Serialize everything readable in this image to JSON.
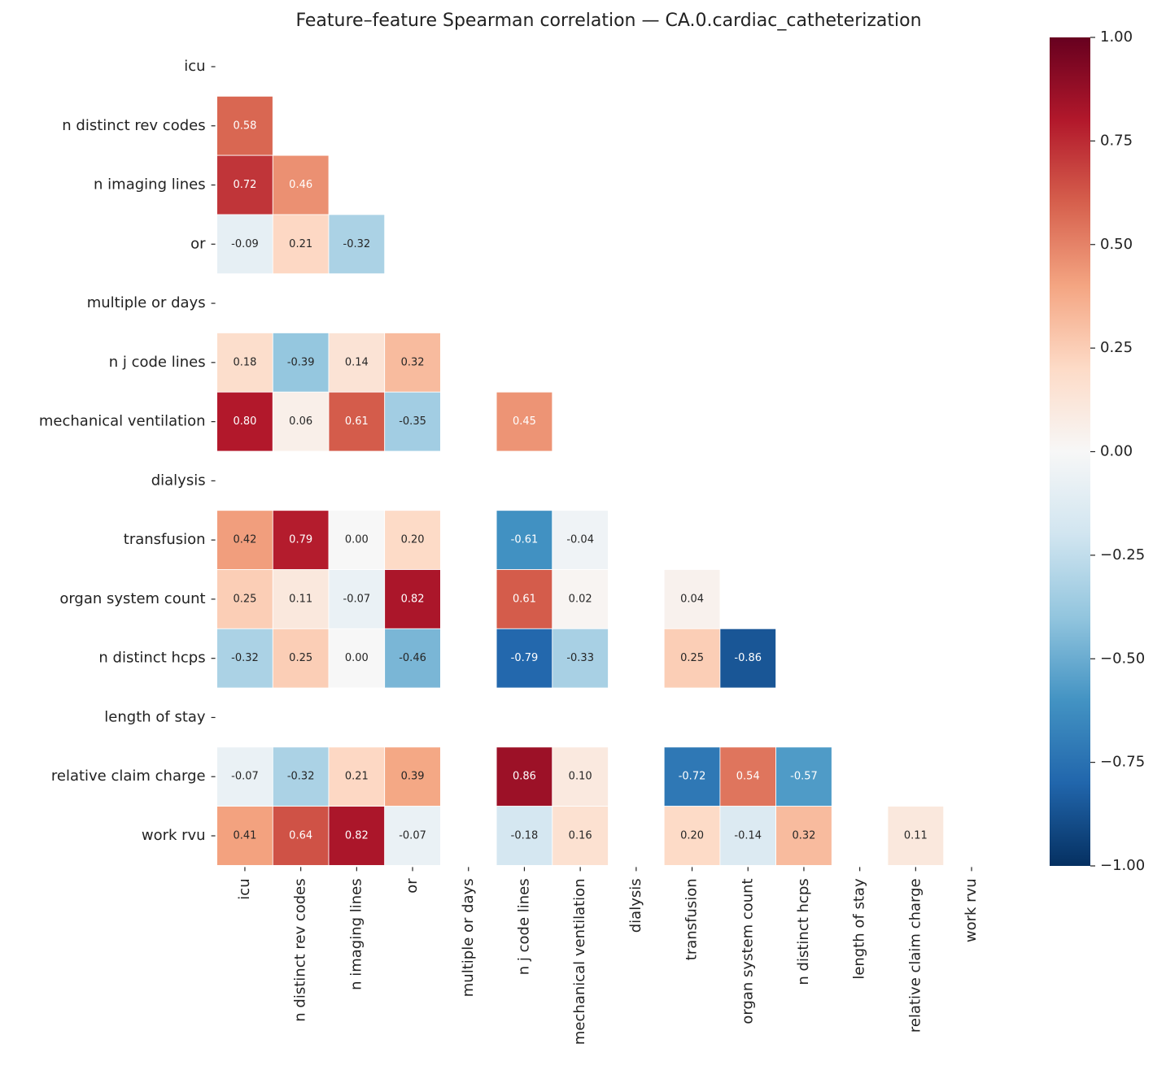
{
  "chart_data": {
    "type": "heatmap",
    "title": "Feature–feature Spearman correlation — CA.0.cardiac_catheterization",
    "categories": [
      "icu",
      "n distinct rev codes",
      "n imaging lines",
      "or",
      "multiple or days",
      "n j code lines",
      "mechanical ventilation",
      "dialysis",
      "transfusion",
      "organ system count",
      "n distinct hcps",
      "length of stay",
      "relative claim charge",
      "work rvu"
    ],
    "values": [
      [
        null,
        null,
        null,
        null,
        null,
        null,
        null,
        null,
        null,
        null,
        null,
        null,
        null,
        null
      ],
      [
        0.58,
        null,
        null,
        null,
        null,
        null,
        null,
        null,
        null,
        null,
        null,
        null,
        null,
        null
      ],
      [
        0.72,
        0.46,
        null,
        null,
        null,
        null,
        null,
        null,
        null,
        null,
        null,
        null,
        null,
        null
      ],
      [
        -0.09,
        0.21,
        -0.32,
        null,
        null,
        null,
        null,
        null,
        null,
        null,
        null,
        null,
        null,
        null
      ],
      [
        null,
        null,
        null,
        null,
        null,
        null,
        null,
        null,
        null,
        null,
        null,
        null,
        null,
        null
      ],
      [
        0.18,
        -0.39,
        0.14,
        0.32,
        null,
        null,
        null,
        null,
        null,
        null,
        null,
        null,
        null,
        null
      ],
      [
        0.8,
        0.06,
        0.61,
        -0.35,
        null,
        0.45,
        null,
        null,
        null,
        null,
        null,
        null,
        null,
        null
      ],
      [
        null,
        null,
        null,
        null,
        null,
        null,
        null,
        null,
        null,
        null,
        null,
        null,
        null,
        null
      ],
      [
        0.42,
        0.79,
        0,
        0.2,
        null,
        -0.61,
        -0.04,
        null,
        null,
        null,
        null,
        null,
        null,
        null
      ],
      [
        0.25,
        0.11,
        -0.07,
        0.82,
        null,
        0.61,
        0.02,
        null,
        0.04,
        null,
        null,
        null,
        null,
        null
      ],
      [
        -0.32,
        0.25,
        0,
        -0.46,
        null,
        -0.79,
        -0.33,
        null,
        0.25,
        -0.86,
        null,
        null,
        null,
        null
      ],
      [
        null,
        null,
        null,
        null,
        null,
        null,
        null,
        null,
        null,
        null,
        null,
        null,
        null,
        null
      ],
      [
        -0.07,
        -0.32,
        0.21,
        0.39,
        null,
        0.86,
        0.1,
        null,
        -0.72,
        0.54,
        -0.57,
        null,
        null,
        null
      ],
      [
        0.41,
        0.64,
        0.82,
        -0.07,
        null,
        -0.18,
        0.16,
        null,
        0.2,
        -0.14,
        0.32,
        null,
        0.11,
        null
      ]
    ],
    "value_labels": [
      [
        null,
        null,
        null,
        null,
        null,
        null,
        null,
        null,
        null,
        null,
        null,
        null,
        null,
        null
      ],
      [
        "0.58",
        null,
        null,
        null,
        null,
        null,
        null,
        null,
        null,
        null,
        null,
        null,
        null,
        null
      ],
      [
        "0.72",
        "0.46",
        null,
        null,
        null,
        null,
        null,
        null,
        null,
        null,
        null,
        null,
        null,
        null
      ],
      [
        "-0.09",
        "0.21",
        "-0.32",
        null,
        null,
        null,
        null,
        null,
        null,
        null,
        null,
        null,
        null,
        null
      ],
      [
        null,
        null,
        null,
        null,
        null,
        null,
        null,
        null,
        null,
        null,
        null,
        null,
        null,
        null
      ],
      [
        "0.18",
        "-0.39",
        "0.14",
        "0.32",
        null,
        null,
        null,
        null,
        null,
        null,
        null,
        null,
        null,
        null
      ],
      [
        "0.80",
        "0.06",
        "0.61",
        "-0.35",
        null,
        "0.45",
        null,
        null,
        null,
        null,
        null,
        null,
        null,
        null
      ],
      [
        null,
        null,
        null,
        null,
        null,
        null,
        null,
        null,
        null,
        null,
        null,
        null,
        null,
        null
      ],
      [
        "0.42",
        "0.79",
        "0.00",
        "0.20",
        null,
        "-0.61",
        "-0.04",
        null,
        null,
        null,
        null,
        null,
        null,
        null
      ],
      [
        "0.25",
        "0.11",
        "-0.07",
        "0.82",
        null,
        "0.61",
        "0.02",
        null,
        "0.04",
        null,
        null,
        null,
        null,
        null
      ],
      [
        "-0.32",
        "0.25",
        "0.00",
        "-0.46",
        null,
        "-0.79",
        "-0.33",
        null,
        "0.25",
        "-0.86",
        null,
        null,
        null,
        null
      ],
      [
        null,
        null,
        null,
        null,
        null,
        null,
        null,
        null,
        null,
        null,
        null,
        null,
        null,
        null
      ],
      [
        "-0.07",
        "-0.32",
        "0.21",
        "0.39",
        null,
        "0.86",
        "0.10",
        null,
        "-0.72",
        "0.54",
        "-0.57",
        null,
        null,
        null
      ],
      [
        "0.41",
        "0.64",
        "0.82",
        "-0.07",
        null,
        "-0.18",
        "0.16",
        null,
        "0.20",
        "-0.14",
        "0.32",
        null,
        "0.11",
        null
      ]
    ],
    "colors": [
      "#053061",
      "#2166ac",
      "#4393c3",
      "#92c5de",
      "#d1e5f0",
      "#f7f7f7",
      "#fddbc7",
      "#f4a582",
      "#d6604d",
      "#b2182b",
      "#67001f"
    ],
    "clim": [
      -1,
      1
    ],
    "cticks": [
      {
        "value": -1,
        "label": "−1.00"
      },
      {
        "value": -0.75,
        "label": "−0.75"
      },
      {
        "value": -0.5,
        "label": "−0.50"
      },
      {
        "value": -0.25,
        "label": "−0.25"
      },
      {
        "value": 0,
        "label": "0.00"
      },
      {
        "value": 0.25,
        "label": "0.25"
      },
      {
        "value": 0.5,
        "label": "0.50"
      },
      {
        "value": 0.75,
        "label": "0.75"
      },
      {
        "value": 1,
        "label": "1.00"
      }
    ]
  }
}
